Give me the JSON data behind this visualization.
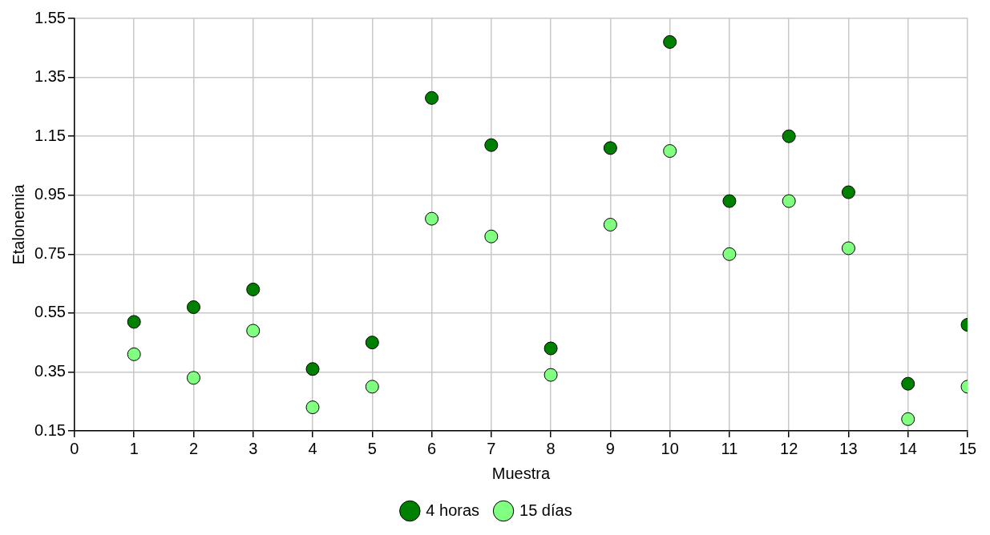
{
  "chart_data": {
    "type": "scatter",
    "xlabel": "Muestra",
    "ylabel": "Etalonemia",
    "x": [
      1,
      2,
      3,
      4,
      5,
      6,
      7,
      8,
      9,
      10,
      11,
      12,
      13,
      14,
      15
    ],
    "series": [
      {
        "name": "4 horas",
        "color": "#008000",
        "values": [
          0.52,
          0.57,
          0.63,
          0.36,
          0.45,
          1.28,
          1.12,
          0.43,
          1.11,
          1.47,
          0.93,
          1.15,
          0.96,
          0.31,
          0.51
        ]
      },
      {
        "name": "15 días",
        "color": "#80ff80",
        "values": [
          0.41,
          0.33,
          0.49,
          0.23,
          0.3,
          0.87,
          0.81,
          0.34,
          0.85,
          1.1,
          0.75,
          0.93,
          0.77,
          0.19,
          0.3
        ]
      }
    ],
    "xlim": [
      0,
      15
    ],
    "xticks": [
      0,
      1,
      2,
      3,
      4,
      5,
      6,
      7,
      8,
      9,
      10,
      11,
      12,
      13,
      14,
      15
    ],
    "ylim": [
      0.15,
      1.55
    ],
    "yticks": [
      0.15,
      0.35,
      0.55,
      0.75,
      0.95,
      1.15,
      1.35,
      1.55
    ],
    "grid": true,
    "legend": "bottom",
    "marker": "circle"
  }
}
